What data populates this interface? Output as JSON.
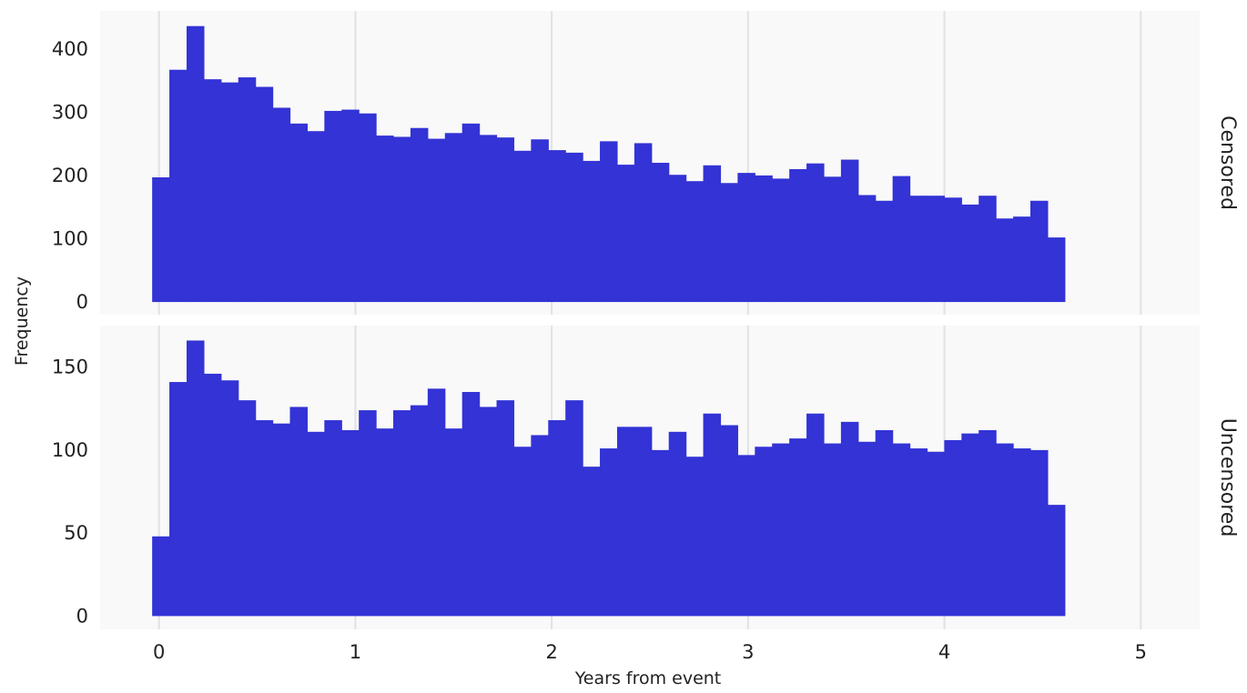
{
  "chart_data": {
    "type": "bar",
    "subtype": "histogram-faceted",
    "xlabel": "Years from event",
    "ylabel": "Frequency",
    "grid": true,
    "x_ticks": [
      0,
      1,
      2,
      3,
      4,
      5
    ],
    "xlim": [
      -0.3,
      5.3
    ],
    "bin_width": 0.0877,
    "bin_start": -0.035,
    "bar_color": "#3333d6",
    "panel_background": "#f9f9f9",
    "grid_color": "#e2e2e2",
    "facets": [
      {
        "name": "Censored",
        "ylim": [
          -20,
          460
        ],
        "y_ticks": [
          0,
          100,
          200,
          300,
          400
        ],
        "values": [
          197,
          367,
          436,
          352,
          347,
          355,
          340,
          307,
          282,
          270,
          302,
          304,
          298,
          263,
          261,
          275,
          258,
          267,
          282,
          264,
          260,
          239,
          257,
          240,
          236,
          223,
          254,
          217,
          251,
          220,
          201,
          191,
          216,
          188,
          204,
          200,
          195,
          210,
          219,
          198,
          225,
          169,
          160,
          199,
          168,
          168,
          165,
          154,
          168,
          132,
          135,
          160,
          102
        ]
      },
      {
        "name": "Uncensored",
        "ylim": [
          -8,
          175
        ],
        "y_ticks": [
          0,
          50,
          100,
          150
        ],
        "values": [
          48,
          141,
          166,
          146,
          142,
          130,
          118,
          116,
          126,
          111,
          118,
          112,
          124,
          113,
          124,
          127,
          137,
          113,
          135,
          126,
          130,
          102,
          109,
          118,
          130,
          90,
          101,
          114,
          114,
          100,
          111,
          96,
          122,
          115,
          97,
          102,
          104,
          107,
          122,
          104,
          117,
          105,
          112,
          104,
          101,
          99,
          106,
          110,
          112,
          104,
          101,
          100,
          67
        ]
      }
    ]
  }
}
